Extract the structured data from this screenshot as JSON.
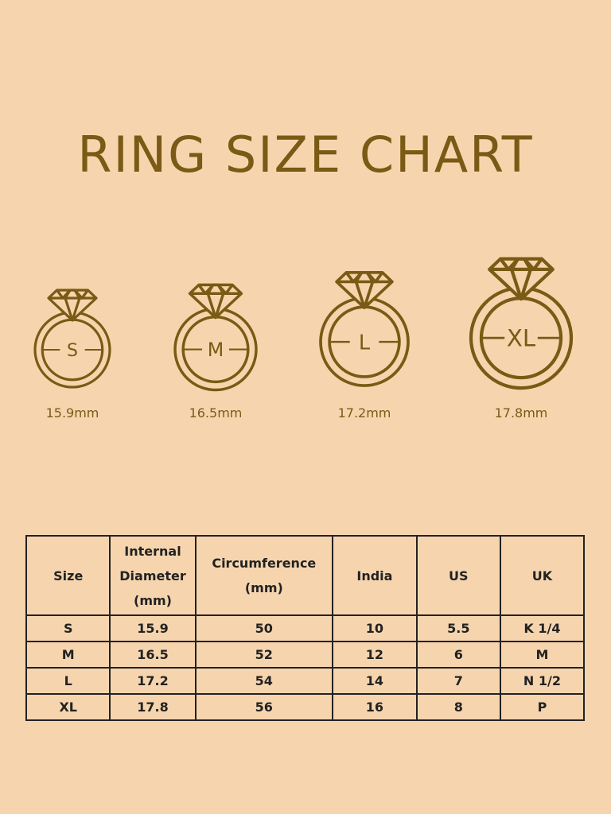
{
  "title": "RING SIZE CHART",
  "colors": {
    "background": "#F6D5AE",
    "gold": "#7A5A14",
    "table_text": "#222222"
  },
  "icon": "diamond-ring-icon",
  "rings": [
    {
      "label": "S",
      "diameter": "15.9mm"
    },
    {
      "label": "M",
      "diameter": "16.5mm"
    },
    {
      "label": "L",
      "diameter": "17.2mm"
    },
    {
      "label": "XL",
      "diameter": "17.8mm"
    }
  ],
  "table": {
    "headers": [
      "Size",
      "Internal Diameter (mm)",
      "Circumference (mm)",
      "India",
      "US",
      "UK"
    ],
    "rows": [
      [
        "S",
        "15.9",
        "50",
        "10",
        "5.5",
        "K 1/4"
      ],
      [
        "M",
        "16.5",
        "52",
        "12",
        "6",
        "M"
      ],
      [
        "L",
        "17.2",
        "54",
        "14",
        "7",
        "N 1/2"
      ],
      [
        "XL",
        "17.8",
        "56",
        "16",
        "8",
        "P"
      ]
    ]
  }
}
